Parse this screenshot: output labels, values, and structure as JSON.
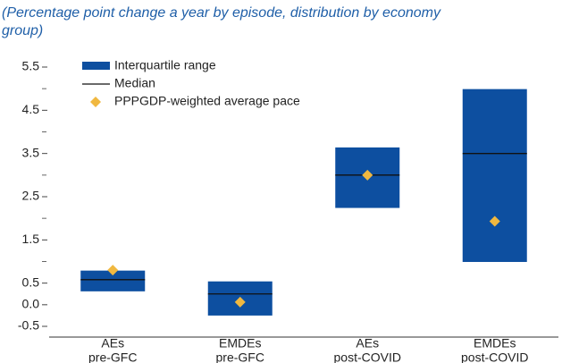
{
  "chart_data": {
    "type": "box",
    "subtitle": [
      "(Percentage point change a year by episode, distribution by economy",
      "group)"
    ],
    "categories": [
      [
        "AEs",
        "pre-GFC"
      ],
      [
        "EMDEs",
        "pre-GFC"
      ],
      [
        "AEs",
        "post-COVID"
      ],
      [
        "EMDEs",
        "post-COVID"
      ]
    ],
    "q1": [
      0.31,
      -0.25,
      2.24,
      0.99
    ],
    "q3": [
      0.79,
      0.54,
      3.64,
      4.99
    ],
    "median": [
      0.58,
      0.25,
      3.0,
      3.5
    ],
    "average": [
      0.8,
      0.06,
      3.0,
      1.93
    ],
    "legend": [
      "Interquartile range",
      "Median",
      "PPPGDP-weighted average pace"
    ],
    "box_color": "#0d4fa0",
    "median_color": "#111111",
    "average_color": "#f0b840",
    "ylim": [
      -0.5,
      5.5
    ],
    "yticks": [
      5.5,
      4.5,
      3.5,
      2.5,
      1.5,
      0.5,
      {
        "value": 0,
        "label": "0.0"
      },
      -0.5
    ],
    "yticks_minor": [
      5,
      4,
      3,
      2,
      1
    ]
  }
}
